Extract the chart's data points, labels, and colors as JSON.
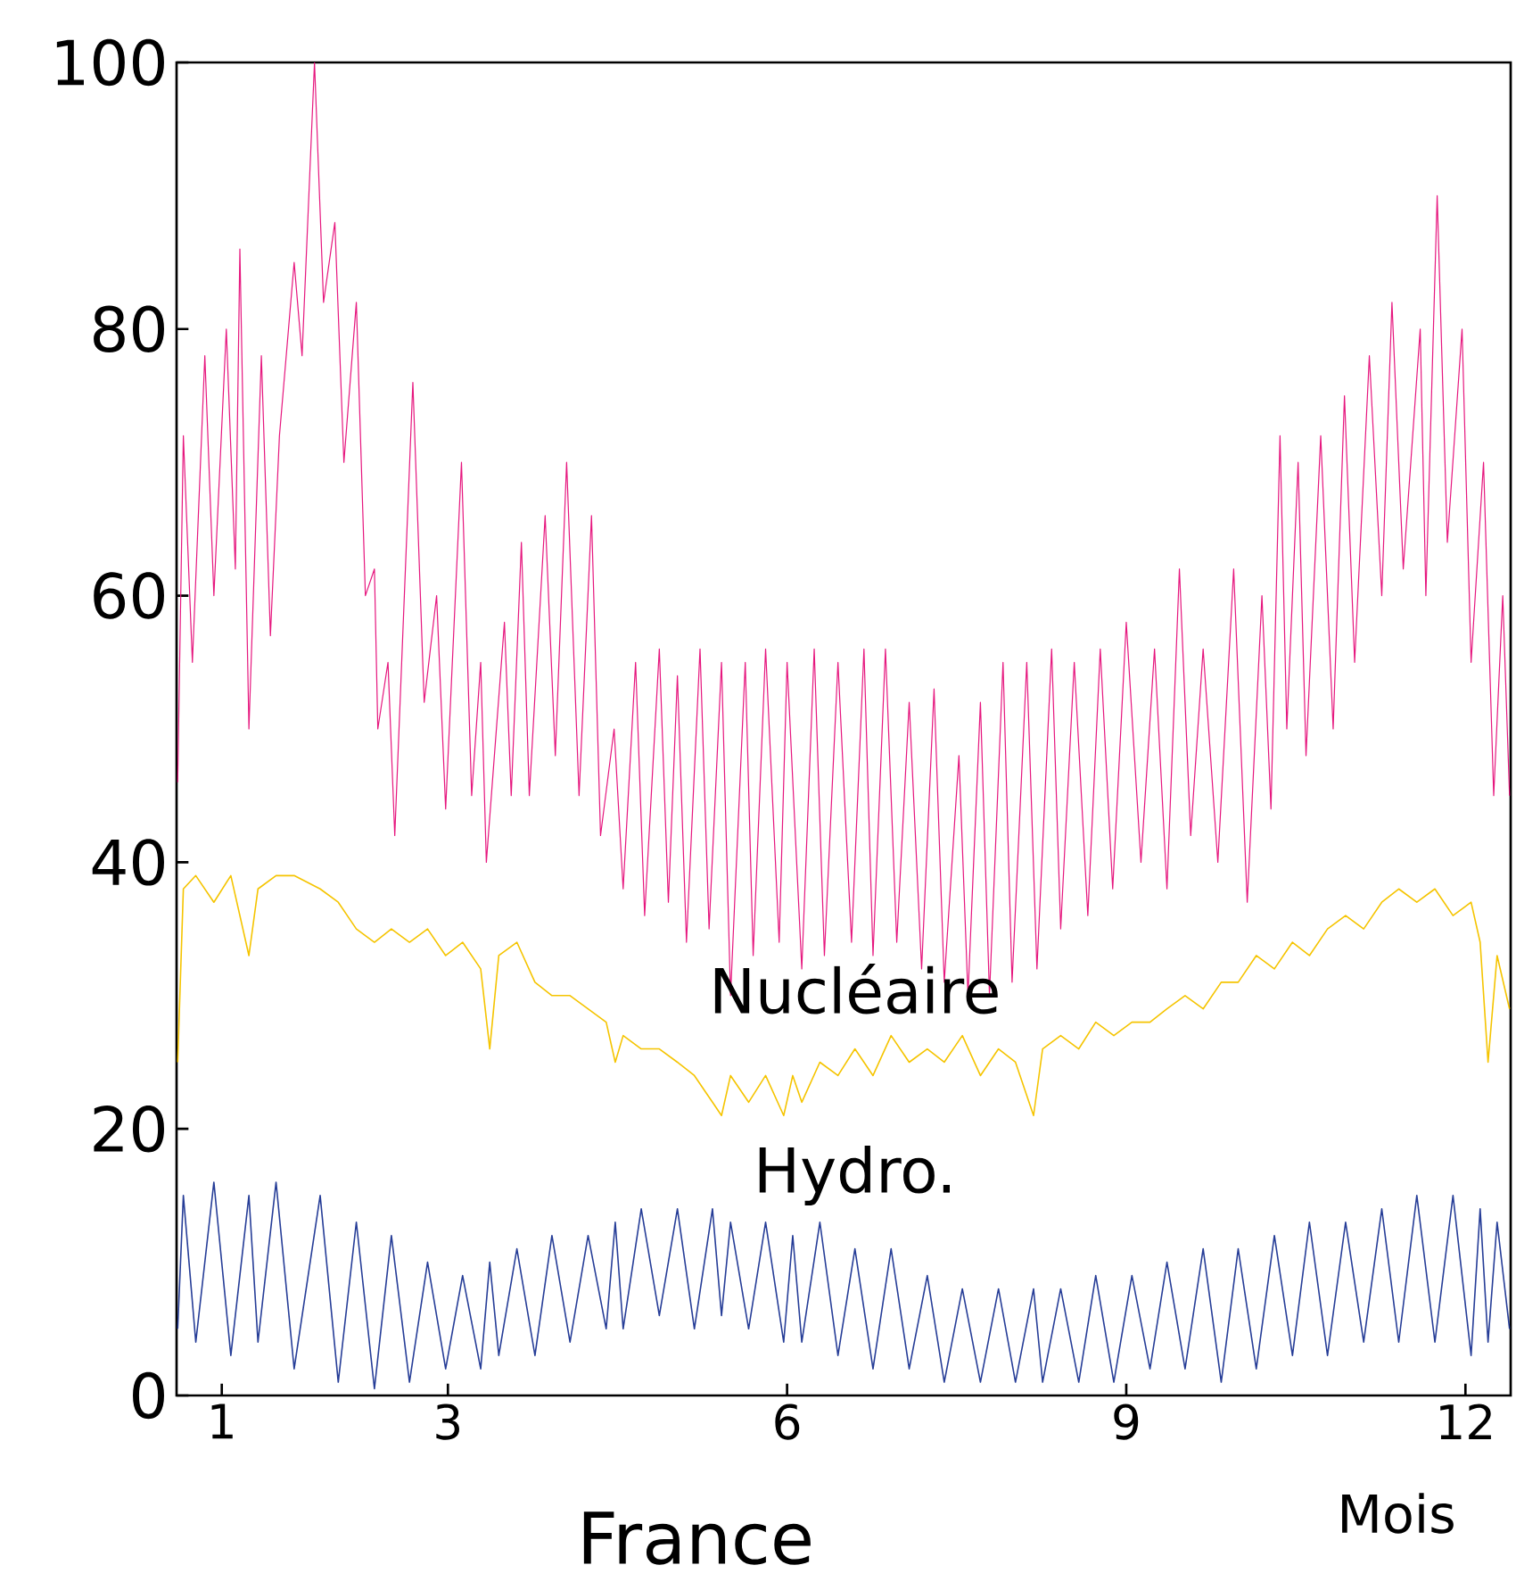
{
  "chart_data": {
    "type": "line",
    "title": "France",
    "xlabel": "Mois",
    "xlim": [
      0.6,
      12.4
    ],
    "xticks": [
      1,
      3,
      6,
      9,
      12
    ],
    "ylim": [
      0,
      100
    ],
    "yticks": [
      0,
      20,
      40,
      60,
      80,
      100
    ],
    "x": [
      0.61,
      0.66,
      0.77,
      0.93,
      1.08,
      1.24,
      1.32,
      1.48,
      1.64,
      1.87,
      2.03,
      2.19,
      2.35,
      2.5,
      2.66,
      2.82,
      2.98,
      3.13,
      3.29,
      3.37,
      3.45,
      3.61,
      3.77,
      3.92,
      4.08,
      4.24,
      4.4,
      4.48,
      4.55,
      4.71,
      4.87,
      5.03,
      5.18,
      5.34,
      5.42,
      5.5,
      5.66,
      5.81,
      5.97,
      6.05,
      6.13,
      6.29,
      6.45,
      6.6,
      6.76,
      6.92,
      7.08,
      7.24,
      7.39,
      7.55,
      7.71,
      7.87,
      8.02,
      8.18,
      8.26,
      8.42,
      8.58,
      8.73,
      8.89,
      9.05,
      9.21,
      9.36,
      9.52,
      9.68,
      9.84,
      9.99,
      10.15,
      10.31,
      10.47,
      10.62,
      10.78,
      10.94,
      11.1,
      11.26,
      11.41,
      11.57,
      11.73,
      11.89,
      12.05,
      12.13,
      12.2,
      12.28,
      12.39
    ],
    "series": [
      {
        "color": "#e6177e",
        "x": [
          0.61,
          0.66,
          0.74,
          0.85,
          0.93,
          1.04,
          1.12,
          1.16,
          1.24,
          1.35,
          1.43,
          1.51,
          1.59,
          1.64,
          1.71,
          1.82,
          1.9,
          2.0,
          2.08,
          2.19,
          2.27,
          2.35,
          2.38,
          2.47,
          2.53,
          2.69,
          2.79,
          2.9,
          2.98,
          3.12,
          3.21,
          3.29,
          3.34,
          3.5,
          3.56,
          3.65,
          3.72,
          3.86,
          3.95,
          4.05,
          4.16,
          4.27,
          4.35,
          4.47,
          4.55,
          4.66,
          4.74,
          4.87,
          4.95,
          5.03,
          5.11,
          5.23,
          5.31,
          5.42,
          5.5,
          5.63,
          5.7,
          5.81,
          5.93,
          6.0,
          6.13,
          6.24,
          6.33,
          6.45,
          6.57,
          6.68,
          6.76,
          6.87,
          6.97,
          7.08,
          7.19,
          7.3,
          7.39,
          7.52,
          7.6,
          7.71,
          7.79,
          7.91,
          7.99,
          8.12,
          8.21,
          8.34,
          8.42,
          8.54,
          8.66,
          8.77,
          8.88,
          9.0,
          9.13,
          9.25,
          9.36,
          9.47,
          9.57,
          9.68,
          9.81,
          9.95,
          10.07,
          10.2,
          10.28,
          10.36,
          10.42,
          10.52,
          10.59,
          10.72,
          10.83,
          10.93,
          11.02,
          11.15,
          11.26,
          11.35,
          11.45,
          11.6,
          11.65,
          11.75,
          11.84,
          11.97,
          12.05,
          12.16,
          12.25,
          12.33,
          12.39
        ],
        "values": [
          46,
          72,
          55,
          78,
          60,
          80,
          62,
          86,
          50,
          78,
          57,
          72,
          80,
          85,
          78,
          100,
          82,
          88,
          70,
          82,
          60,
          62,
          50,
          55,
          42,
          76,
          52,
          60,
          44,
          70,
          45,
          55,
          40,
          58,
          45,
          64,
          45,
          66,
          48,
          70,
          45,
          66,
          42,
          50,
          38,
          55,
          36,
          56,
          37,
          54,
          34,
          56,
          35,
          55,
          30,
          55,
          33,
          56,
          34,
          55,
          32,
          56,
          33,
          55,
          34,
          56,
          33,
          56,
          34,
          52,
          32,
          53,
          31,
          48,
          30,
          52,
          30,
          55,
          31,
          55,
          32,
          56,
          35,
          55,
          36,
          56,
          38,
          58,
          40,
          56,
          38,
          62,
          42,
          56,
          40,
          62,
          37,
          60,
          44,
          72,
          50,
          70,
          48,
          72,
          50,
          75,
          55,
          78,
          60,
          82,
          62,
          80,
          60,
          90,
          64,
          80,
          55,
          70,
          45,
          60,
          45
        ]
      },
      {
        "name": "Nucléaire",
        "color": "#f5c400",
        "values": [
          25,
          38,
          39,
          37,
          39,
          33,
          38,
          39,
          39,
          38,
          37,
          35,
          34,
          35,
          34,
          35,
          33,
          34,
          32,
          26,
          33,
          34,
          31,
          30,
          30,
          29,
          28,
          25,
          27,
          26,
          26,
          25,
          24,
          22,
          21,
          24,
          22,
          24,
          21,
          24,
          22,
          25,
          24,
          26,
          24,
          27,
          25,
          26,
          25,
          27,
          24,
          26,
          25,
          21,
          26,
          27,
          26,
          28,
          27,
          28,
          28,
          29,
          30,
          29,
          31,
          31,
          33,
          32,
          34,
          33,
          35,
          36,
          35,
          37,
          38,
          37,
          38,
          36,
          37,
          34,
          25,
          33,
          29
        ]
      },
      {
        "name": "Hydro.",
        "color": "#263d97",
        "values": [
          5,
          15,
          4,
          16,
          3,
          15,
          4,
          16,
          2,
          15,
          1,
          13,
          0.5,
          12,
          1,
          10,
          2,
          9,
          2,
          10,
          3,
          11,
          3,
          12,
          4,
          12,
          5,
          13,
          5,
          14,
          6,
          14,
          5,
          14,
          6,
          13,
          5,
          13,
          4,
          12,
          4,
          13,
          3,
          11,
          2,
          11,
          2,
          9,
          1,
          8,
          1,
          8,
          1,
          8,
          1,
          8,
          1,
          9,
          1,
          9,
          2,
          10,
          2,
          11,
          1,
          11,
          2,
          12,
          3,
          13,
          3,
          13,
          4,
          14,
          4,
          15,
          4,
          15,
          3,
          14,
          4,
          13,
          5
        ]
      }
    ]
  }
}
